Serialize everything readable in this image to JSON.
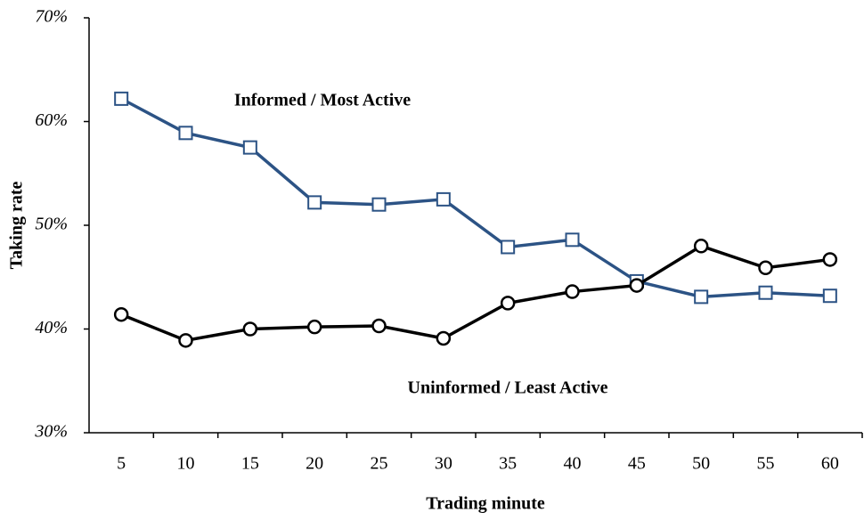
{
  "chart_data": {
    "type": "line",
    "xlabel": "Trading minute",
    "ylabel": "Taking rate",
    "categories": [
      "5",
      "10",
      "15",
      "20",
      "25",
      "30",
      "35",
      "40",
      "45",
      "50",
      "55",
      "60"
    ],
    "series": [
      {
        "name": "Informed / Most Active",
        "color": "#2c5385",
        "marker": "square",
        "values": [
          62.2,
          58.9,
          57.5,
          52.2,
          52.0,
          52.5,
          47.9,
          48.6,
          44.6,
          43.1,
          43.5,
          43.2
        ]
      },
      {
        "name": "Uninformed / Least Active",
        "color": "#000000",
        "marker": "circle",
        "values": [
          41.4,
          38.9,
          40.0,
          40.2,
          40.3,
          39.1,
          42.5,
          43.6,
          44.2,
          48.0,
          45.9,
          46.7
        ]
      }
    ],
    "ylim": [
      30,
      70
    ],
    "yticks": [
      {
        "value": 30,
        "label": "30%"
      },
      {
        "value": 40,
        "label": "40%"
      },
      {
        "value": 50,
        "label": "50%"
      },
      {
        "value": 60,
        "label": "60%"
      },
      {
        "value": 70,
        "label": "70%"
      }
    ],
    "grid": false
  }
}
